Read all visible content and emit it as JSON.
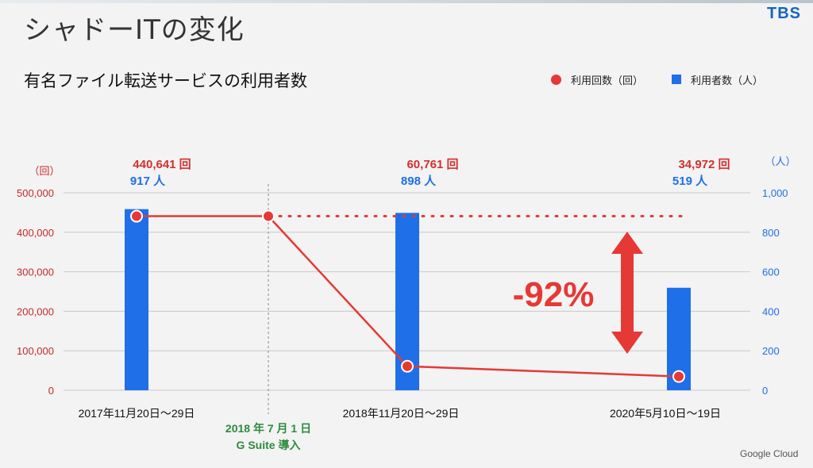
{
  "header": {
    "title": "シャドーITの変化",
    "logo_text": "TBS",
    "footer_logo": "Google Cloud"
  },
  "chart_data": {
    "type": "bar",
    "title": "有名ファイル転送サービスの利用者数",
    "categories": [
      "2017年11月20日〜29日",
      "2018年11月20日〜29日",
      "2020年5月10日〜19日"
    ],
    "series": [
      {
        "name": "利用回数（回）",
        "type": "line",
        "axis": "left",
        "color": "#e53935",
        "values": [
          440641,
          60761,
          34972
        ],
        "labels": [
          "440,641 回",
          "60,761 回",
          "34,972 回"
        ]
      },
      {
        "name": "利用者数（人）",
        "type": "bar",
        "axis": "right",
        "color": "#1e6fe8",
        "values": [
          917,
          898,
          519
        ],
        "labels": [
          "917 人",
          "898 人",
          "519 人"
        ]
      }
    ],
    "left_axis": {
      "unit": "（回）",
      "range": [
        0,
        500000
      ],
      "ticks": [
        0,
        100000,
        200000,
        300000,
        400000,
        500000
      ],
      "tick_labels": [
        "0",
        "100,000",
        "200,000",
        "300,000",
        "400,000",
        "500,000"
      ],
      "color": "#c62828"
    },
    "right_axis": {
      "unit": "（人）",
      "range": [
        0,
        1000
      ],
      "ticks": [
        0,
        200,
        400,
        600,
        800,
        1000
      ],
      "tick_labels": [
        "0",
        "200",
        "400",
        "600",
        "800",
        "1,000"
      ],
      "color": "#1e6fe8"
    },
    "grid": true,
    "legend": "top-right",
    "annotations": {
      "event": {
        "line1": "2018 年 7 月 1 日",
        "line2": "G Suite 導入",
        "value": 440641,
        "color": "#2e8b3e"
      },
      "change": {
        "label": "-92%",
        "color": "#e53935"
      }
    }
  }
}
